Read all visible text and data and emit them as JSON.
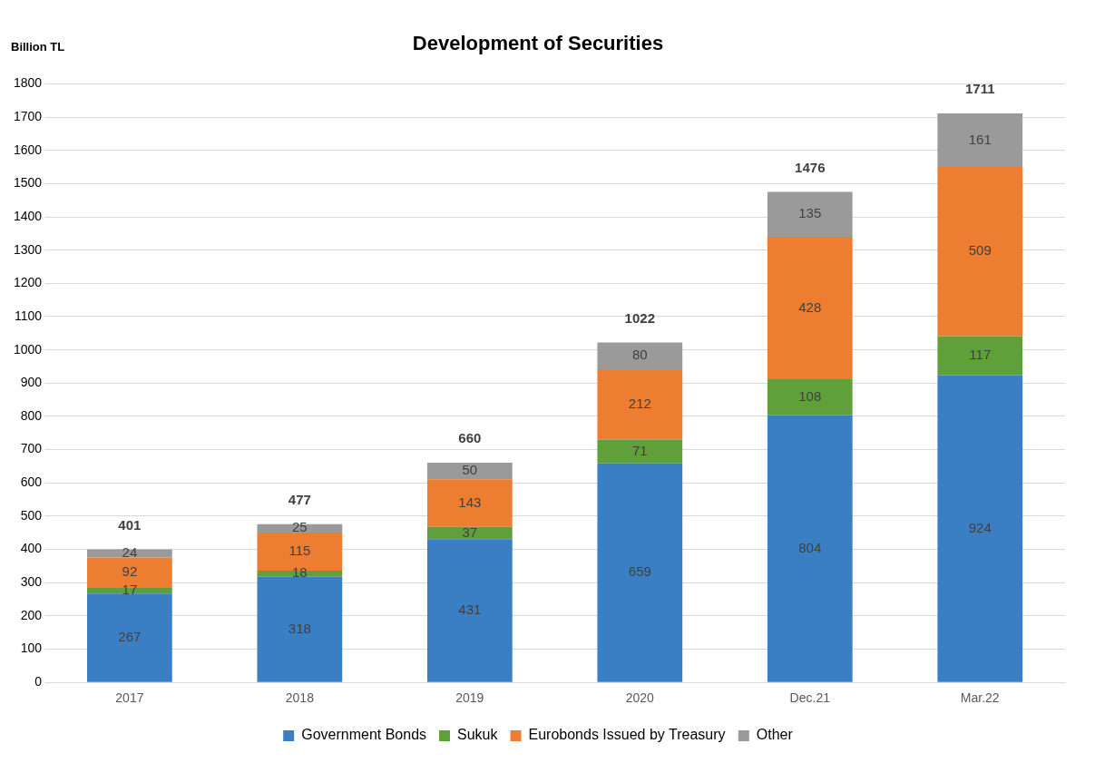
{
  "chart_data": {
    "type": "bar",
    "title": "Development of Securities",
    "ylabel": "Billion TL",
    "categories": [
      "2017",
      "2018",
      "2019",
      "2020",
      "Dec.21",
      "Mar.22"
    ],
    "stacked": true,
    "series": [
      {
        "name": "Government Bonds",
        "color": "#3a7fc4",
        "values": [
          267,
          318,
          431,
          659,
          804,
          924
        ]
      },
      {
        "name": "Sukuk",
        "color": "#5fa03a",
        "values": [
          17,
          18,
          37,
          71,
          108,
          117
        ]
      },
      {
        "name": "Eurobonds Issued by Treasury",
        "color": "#ed7d31",
        "values": [
          92,
          115,
          143,
          212,
          428,
          509
        ]
      },
      {
        "name": "Other",
        "color": "#9a9a9a",
        "values": [
          24,
          25,
          50,
          80,
          135,
          161
        ]
      }
    ],
    "totals": [
      "401",
      "477",
      "660",
      "1022",
      "1476",
      "1711"
    ],
    "data_labels": true,
    "ylim": [
      0,
      1800
    ],
    "yticks": [
      0,
      100,
      200,
      300,
      400,
      500,
      600,
      700,
      800,
      900,
      1000,
      1100,
      1200,
      1300,
      1400,
      1500,
      1600,
      1700,
      1800
    ],
    "grid": "y",
    "legend": "bottom"
  }
}
